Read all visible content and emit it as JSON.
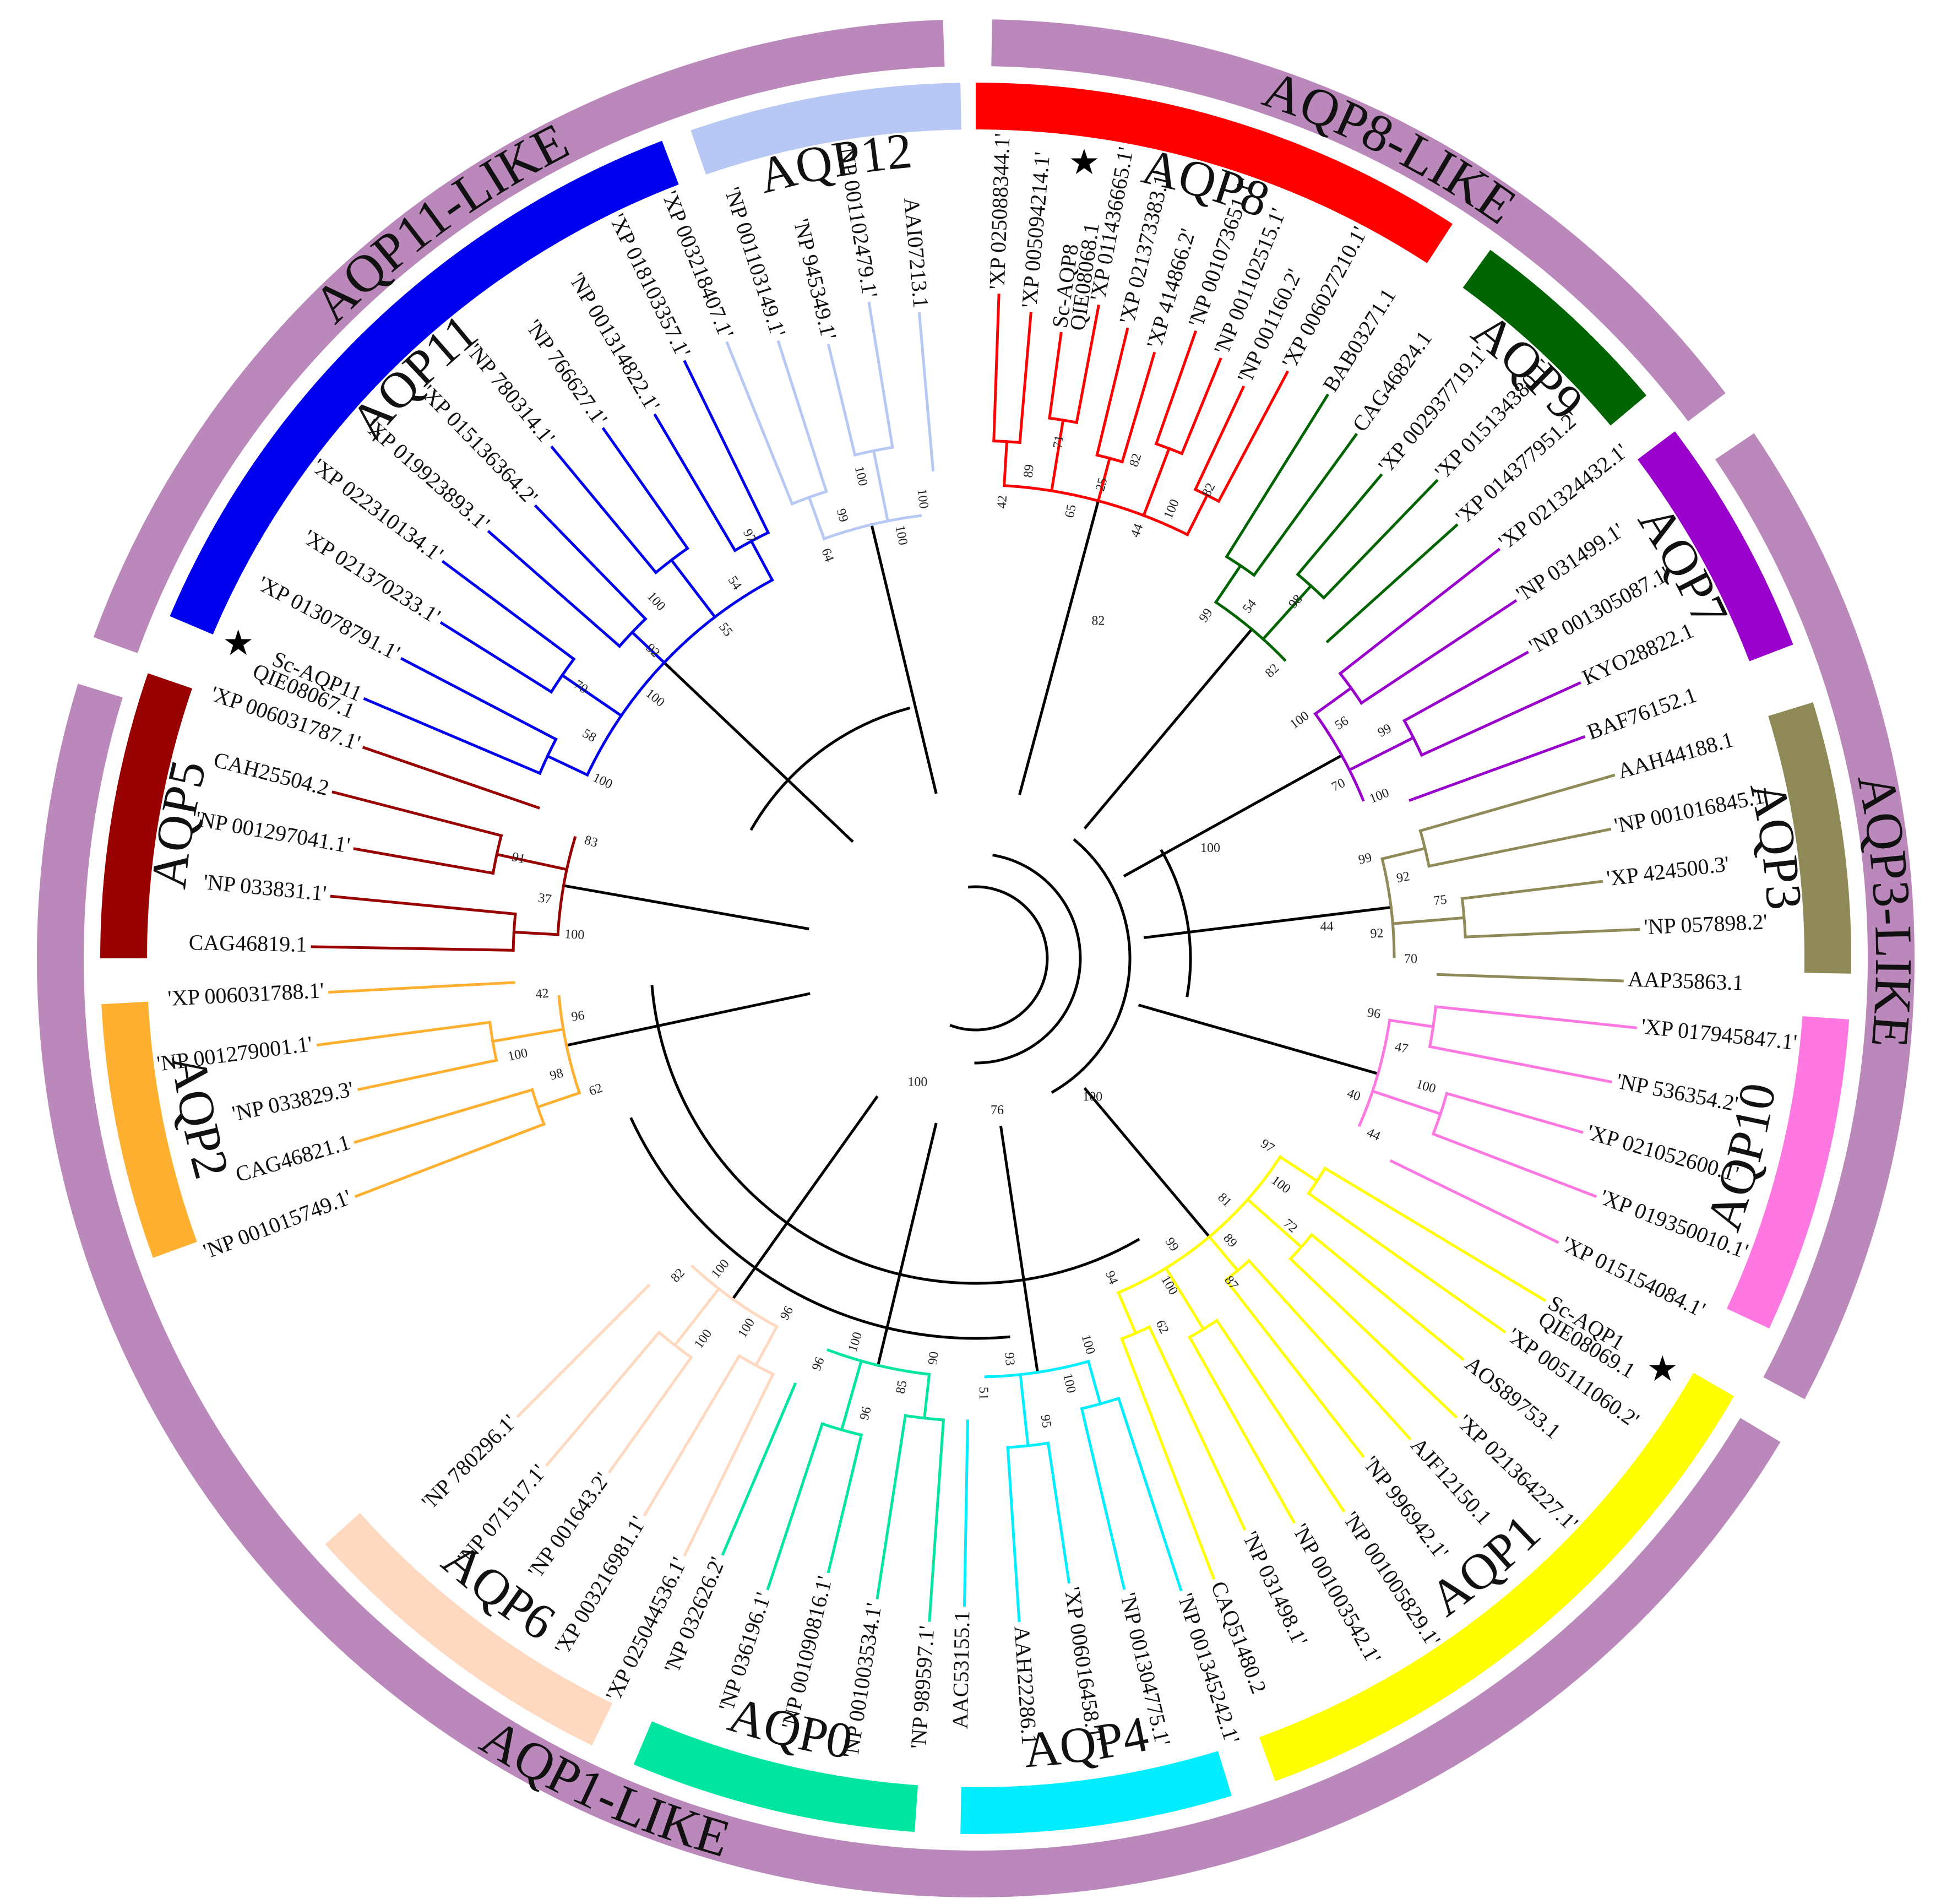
{
  "figure": {
    "star_symbol": "★"
  },
  "superfamilies": [
    {
      "label": "AQP8-LIKE",
      "color": "#bb88bb"
    },
    {
      "label": "AQP3-LIKE",
      "color": "#bb88bb"
    },
    {
      "label": "AQP1-LIKE",
      "color": "#bb88bb"
    },
    {
      "label": "AQP11-LIKE",
      "color": "#bb88bb"
    }
  ],
  "groups": [
    {
      "id": "AQP8",
      "label": "AQP8",
      "color": "#ff0000",
      "tips": [
        "'XP 025088344.1'",
        "'XP 005094214.1'",
        "Sc-AQP8",
        "'XP 011436665.1'",
        "'XP 021373383.1'",
        "'XP 414866.2'",
        "'NP 001073651.1'",
        "'NP 001102515.1'",
        "'NP 001160.2'",
        "'XP 006027210.1'"
      ],
      "accession": "QIE08068.1",
      "star": true,
      "star_tip": 2,
      "bootstraps": [
        "42",
        "89",
        "71",
        "65",
        "25",
        "82",
        "44",
        "100",
        "82"
      ]
    },
    {
      "id": "AQP9",
      "label": "AQP9",
      "color": "#006400",
      "tips": [
        "BAB03271.1",
        "CAG46824.1",
        "'XP 002937719.1'",
        "'XP 015134380.1'",
        "'XP 014377951.2'"
      ],
      "bootstraps": [
        "99",
        "54",
        "98",
        "82"
      ]
    },
    {
      "id": "AQP7",
      "label": "AQP7",
      "color": "#9900cc",
      "tips": [
        "'XP 021324432.1'",
        "'NP 031499.1'",
        "'NP 001305087.1'",
        "KYO28822.1",
        "BAF76152.1"
      ],
      "bootstraps": [
        "100",
        "56",
        "99",
        "70",
        "100"
      ]
    },
    {
      "id": "AQP3",
      "label": "AQP3",
      "color": "#8f8a57",
      "tips": [
        "AAH44188.1",
        "'NP 001016845.1'",
        "'XP 424500.3'",
        "'NP 057898.2'",
        "AAP35863.1"
      ],
      "bootstraps": [
        "99",
        "92",
        "75",
        "92",
        "70"
      ]
    },
    {
      "id": "AQP10",
      "label": "AQP10",
      "color": "#ff77e0",
      "tips": [
        "'XP 017945847.1'",
        "'NP 536354.2'",
        "'XP 021052600.1'",
        "'XP 019350010.1'",
        "'XP 015154084.1'"
      ],
      "bootstraps": [
        "96",
        "47",
        "100",
        "40",
        "44"
      ]
    },
    {
      "id": "AQP1",
      "label": "AQP1",
      "color": "#ffff00",
      "tips": [
        "Sc-AQP1",
        "'XP 005111060.2'",
        "AOS89753.1",
        "'XP 021364227.1'",
        "AJF12150.1",
        "'NP 996942.1'",
        "'NP 001005829.1'",
        "'NP 001003542.1'",
        "'NP 031498.1'",
        "CAQ51480.2"
      ],
      "accession": "QIE08069.1",
      "star": true,
      "star_tip": 0,
      "bootstraps": [
        "97",
        "100",
        "72",
        "81",
        "89",
        "87",
        "99",
        "100",
        "62",
        "94"
      ]
    },
    {
      "id": "AQP4",
      "label": "AQP4",
      "color": "#00eeff",
      "tips": [
        "'NP 001345242.1'",
        "'NP 001304775.1'",
        "'XP 006016458.1'",
        "AAH22286.1",
        "AAC53155.1"
      ],
      "bootstraps": [
        "100",
        "100",
        "95",
        "93",
        "51"
      ]
    },
    {
      "id": "AQP0",
      "label": "AQP0",
      "color": "#00e6a0",
      "tips": [
        "'NP 989597.1'",
        "'NP 001003534.1'",
        "'NP 001090816.1'",
        "'NP 036196.1'",
        "'NP 032626.2'"
      ],
      "bootstraps": [
        "90",
        "85",
        "96",
        "100",
        "96"
      ]
    },
    {
      "id": "AQP6",
      "label": "AQP6",
      "color": "#ffd8c0",
      "tips": [
        "'XP 025044536.1'",
        "'XP 003216981.1'",
        "'NP 001643.2'",
        "'NP 071517.1'",
        "'NP 780296.1'"
      ],
      "bootstraps": [
        "96",
        "100",
        "100",
        "100",
        "82"
      ]
    },
    {
      "id": "AQP2",
      "label": "AQP2",
      "color": "#ffb030",
      "tips": [
        "'NP 001015749.1'",
        "CAG46821.1",
        "'NP 033829.3'",
        "'NP 001279001.1'",
        "'XP 006031788.1'"
      ],
      "bootstraps": [
        "62",
        "98",
        "100",
        "96",
        "42"
      ]
    },
    {
      "id": "AQP5",
      "label": "AQP5",
      "color": "#990000",
      "tips": [
        "CAG46819.1",
        "'NP 033831.1'",
        "'NP 001297041.1'",
        "CAH25504.2",
        "'XP 006031787.1'"
      ],
      "bootstraps": [
        "100",
        "37",
        "91",
        "83"
      ]
    },
    {
      "id": "AQP11",
      "label": "AQP11",
      "color": "#0000ee",
      "tips": [
        "Sc-AQP11",
        "'XP 013078791.1'",
        "'XP 021370233.1'",
        "'XP 022310134.1'",
        "'XP 019923893.1'",
        "'XP 015136364.2'",
        "'NP 780314.1'",
        "'NP 766627.1'",
        "'NP 001314822.1'",
        "'XP 018103357.1'"
      ],
      "accession": "QIE08067.1",
      "star": true,
      "star_tip": 0,
      "bootstraps": [
        "100",
        "58",
        "70",
        "100",
        "92",
        "100",
        "55",
        "54",
        "97"
      ]
    },
    {
      "id": "AQP12",
      "label": "AQP12",
      "color": "#b8c8f5",
      "tips": [
        "'XP 003218407.1'",
        "'NP 001103149.1'",
        "'NP 945349.1'",
        "'NP 001102479.1'",
        "AAI07213.1"
      ],
      "bootstraps": [
        "64",
        "99",
        "100",
        "100",
        "100"
      ]
    }
  ],
  "backbone_bootstraps": [
    "100",
    "100",
    "76",
    "100",
    "82",
    "44"
  ]
}
